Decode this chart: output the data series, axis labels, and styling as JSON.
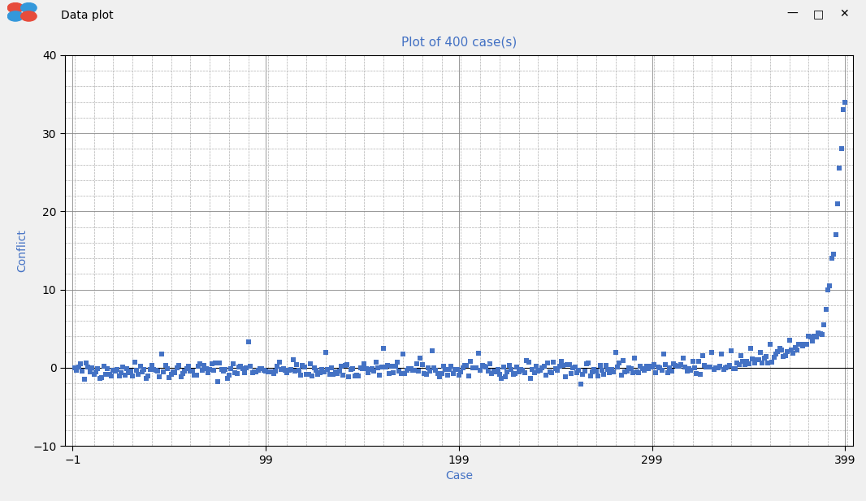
{
  "title": "Plot of 400 case(s)",
  "xlabel": "Case",
  "ylabel": "Conflict",
  "title_color": "#4472C4",
  "label_color": "#4472C4",
  "tick_label_color": "#000000",
  "xlim_min": -5,
  "xlim_max": 403,
  "ylim_min": -10,
  "ylim_max": 40,
  "xticks": [
    -1,
    99,
    199,
    299,
    399
  ],
  "yticks": [
    -10,
    0,
    10,
    20,
    30,
    40
  ],
  "major_grid_color": "#000000",
  "minor_grid_color": "#b0b0b0",
  "marker_color": "#4472C4",
  "bg_color": "#ffffff",
  "window_bg": "#f0f0f0",
  "title_bar_bg": "#f0f0f0",
  "n_cases": 400,
  "seed": 42,
  "extreme_x": [
    389,
    390,
    391,
    392,
    393,
    394,
    395,
    396,
    397,
    398,
    399
  ],
  "extreme_y": [
    7.5,
    10.0,
    10.5,
    14.0,
    14.5,
    17.0,
    21.0,
    25.5,
    28.0,
    33.0,
    34.0
  ]
}
